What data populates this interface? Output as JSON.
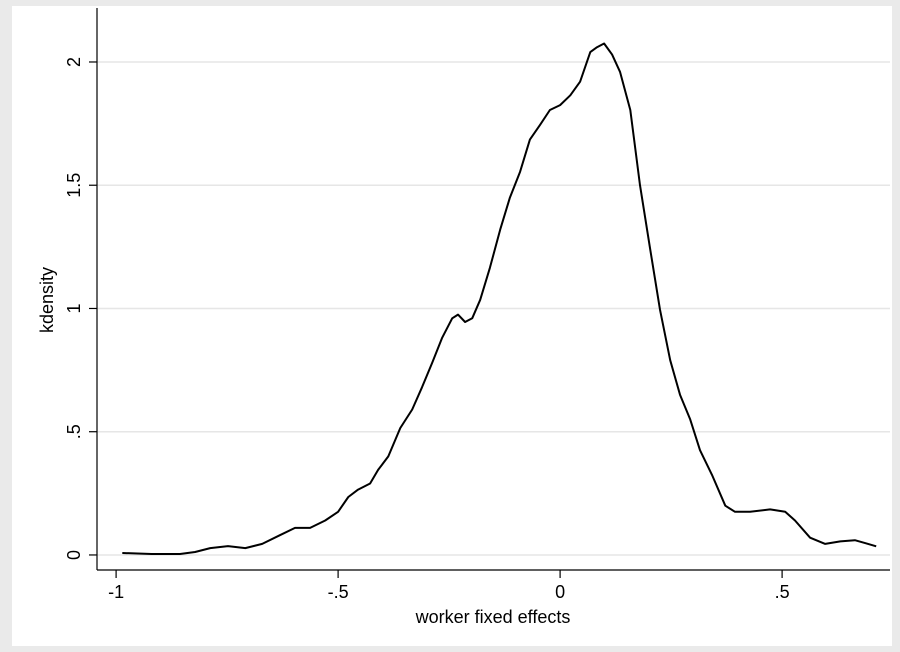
{
  "chart_data": {
    "type": "line",
    "xlabel": "worker fixed effects",
    "ylabel": "kdensity",
    "x": [
      -0.986,
      -0.92,
      -0.856,
      -0.822,
      -0.788,
      -0.748,
      -0.709,
      -0.671,
      -0.631,
      -0.597,
      -0.563,
      -0.529,
      -0.5,
      -0.477,
      -0.455,
      -0.428,
      -0.41,
      -0.387,
      -0.36,
      -0.333,
      -0.311,
      -0.288,
      -0.266,
      -0.243,
      -0.23,
      -0.214,
      -0.198,
      -0.18,
      -0.158,
      -0.135,
      -0.113,
      -0.09,
      -0.068,
      -0.045,
      -0.023,
      0,
      0.023,
      0.045,
      0.068,
      0.083,
      0.099,
      0.117,
      0.135,
      0.158,
      0.18,
      0.203,
      0.225,
      0.248,
      0.27,
      0.293,
      0.315,
      0.342,
      0.372,
      0.394,
      0.428,
      0.473,
      0.507,
      0.529,
      0.563,
      0.597,
      0.631,
      0.664,
      0.687,
      0.712
    ],
    "series": [
      {
        "color": "#000000",
        "values": [
          0.008,
          0.004,
          0.004,
          0.012,
          0.028,
          0.036,
          0.028,
          0.045,
          0.08,
          0.11,
          0.11,
          0.14,
          0.175,
          0.235,
          0.265,
          0.29,
          0.345,
          0.4,
          0.515,
          0.59,
          0.68,
          0.78,
          0.88,
          0.96,
          0.975,
          0.945,
          0.96,
          1.035,
          1.165,
          1.32,
          1.45,
          1.555,
          1.685,
          1.745,
          1.805,
          1.825,
          1.865,
          1.92,
          2.04,
          2.06,
          2.075,
          2.03,
          1.96,
          1.805,
          1.5,
          1.24,
          0.995,
          0.79,
          0.65,
          0.55,
          0.425,
          0.325,
          0.2,
          0.175,
          0.175,
          0.185,
          0.175,
          0.14,
          0.07,
          0.045,
          0.055,
          0.06,
          0.048,
          0.035
        ]
      }
    ],
    "xlim": [
      -1.043,
      0.743
    ],
    "ylim": [
      -0.061,
      2.219
    ],
    "xticks": [
      {
        "value": -1,
        "label": "-1"
      },
      {
        "value": -0.5,
        "label": "-.5"
      },
      0,
      {
        "value": 0.5,
        "label": ".5"
      }
    ],
    "yticks": [
      0,
      {
        "value": 0.5,
        "label": ".5"
      },
      1,
      {
        "value": 1.5,
        "label": "1.5"
      },
      2
    ],
    "grid": true
  }
}
